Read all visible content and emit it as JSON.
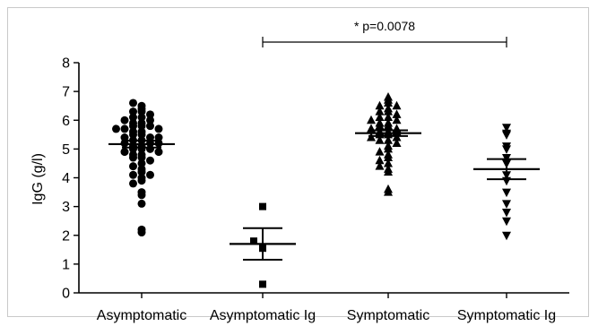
{
  "chart_data": {
    "type": "scatter",
    "ylabel": "IgG (g/l)",
    "ylim": [
      0,
      8
    ],
    "yticks": [
      0,
      1,
      2,
      3,
      4,
      5,
      6,
      7,
      8
    ],
    "categories": [
      "Asymptomatic",
      "Asymptomatic Ig",
      "Symptomatic",
      "Symptomatic Ig"
    ],
    "series": [
      {
        "category": "Asymptomatic",
        "marker": "circle",
        "mean": 5.17,
        "sem_low": 5.05,
        "sem_high": 5.29,
        "values": [
          6.5,
          6.6,
          6.4,
          6.3,
          6.3,
          6.2,
          6.1,
          6.1,
          6.0,
          6.0,
          5.9,
          5.9,
          5.8,
          5.8,
          5.8,
          5.7,
          5.7,
          5.7,
          5.6,
          5.6,
          5.5,
          5.5,
          5.4,
          5.4,
          5.4,
          5.3,
          5.3,
          5.2,
          5.2,
          5.2,
          5.1,
          5.1,
          5.0,
          5.0,
          5.0,
          4.9,
          4.9,
          4.8,
          4.8,
          4.7,
          4.7,
          4.6,
          4.5,
          4.4,
          4.3,
          4.2,
          4.1,
          4.1,
          4.0,
          3.9,
          3.8,
          3.5,
          3.4,
          3.1,
          2.2,
          2.1
        ]
      },
      {
        "category": "Asymptomatic Ig",
        "marker": "square",
        "mean": 1.7,
        "sem_low": 1.15,
        "sem_high": 2.25,
        "values": [
          3.0,
          1.8,
          1.55,
          0.3
        ]
      },
      {
        "category": "Symptomatic",
        "marker": "triangle-up",
        "mean": 5.55,
        "sem_low": 5.45,
        "sem_high": 5.65,
        "values": [
          6.8,
          6.7,
          6.6,
          6.5,
          6.5,
          6.4,
          6.3,
          6.3,
          6.2,
          6.1,
          6.1,
          6.0,
          6.0,
          5.9,
          5.9,
          5.8,
          5.8,
          5.7,
          5.7,
          5.6,
          5.6,
          5.6,
          5.5,
          5.5,
          5.4,
          5.4,
          5.3,
          5.3,
          5.2,
          5.1,
          5.0,
          4.9,
          4.8,
          4.7,
          4.6,
          4.5,
          4.4,
          4.3,
          4.2,
          3.6,
          3.5
        ]
      },
      {
        "category": "Symptomatic Ig",
        "marker": "triangle-down",
        "mean": 4.3,
        "sem_low": 3.95,
        "sem_high": 4.65,
        "values": [
          5.75,
          5.55,
          5.5,
          5.1,
          5.0,
          4.7,
          4.5,
          4.1,
          3.9,
          3.5,
          3.1,
          2.8,
          2.5,
          2.0
        ]
      }
    ],
    "annotation": {
      "text": "* p=0.0078",
      "from_category": "Asymptomatic Ig",
      "to_category": "Symptomatic Ig"
    },
    "grid": false
  }
}
